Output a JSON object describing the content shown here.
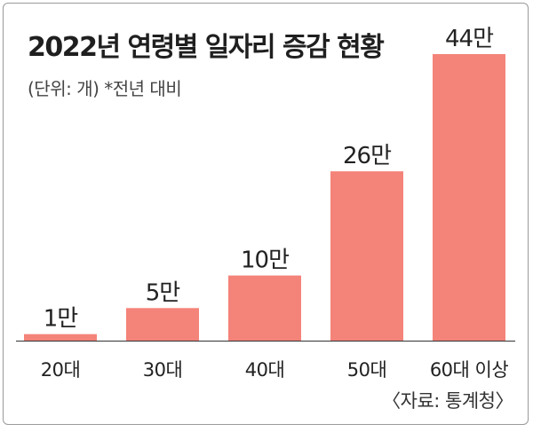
{
  "colors": {
    "bar": "#f4837a",
    "baseline": "#333333",
    "text": "#222222"
  },
  "source": "〈자료: 통계청〉",
  "chart_data": {
    "type": "bar",
    "title": "2022년 연령별 일자리 증감 현황",
    "subtitle": "(단위: 개)  *전년 대비",
    "categories": [
      "20대",
      "30대",
      "40대",
      "50대",
      "60대 이상"
    ],
    "values": [
      10000,
      50000,
      100000,
      260000,
      440000
    ],
    "data_labels": [
      "1만",
      "5만",
      "10만",
      "26만",
      "44만"
    ],
    "ylim": [
      0,
      440000
    ],
    "grid": false,
    "legend": "none"
  }
}
